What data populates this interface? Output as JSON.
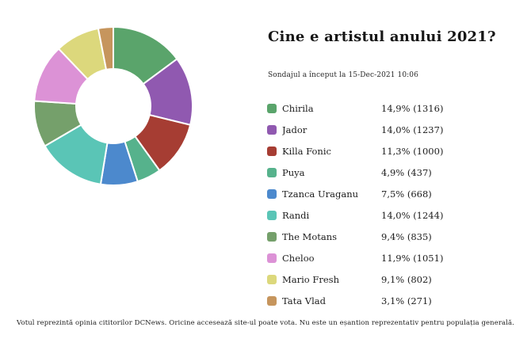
{
  "header": {
    "title": "Cine e artistul anului 2021?",
    "subtitle": "Sondajul a început la 15-Dec-2021 10:06"
  },
  "footer": {
    "disclaimer": "Votul reprezintă opinia cititorilor DCNews. Oricine accesează site-ul poate vota. Nu este un eșantion reprezentativ pentru populația generală."
  },
  "chart_data": {
    "type": "pie",
    "variant": "donut",
    "title": "Cine e artistul anului 2021?",
    "legend_position": "right",
    "start_angle_deg": -90,
    "direction": "clockwise",
    "inner_radius_ratio": 0.47,
    "categories": [
      "Chirila",
      "Jador",
      "Killa Fonic",
      "Puya",
      "Tzanca Uraganu",
      "Randi",
      "The Motans",
      "Cheloo",
      "Mario Fresh",
      "Tata Vlad"
    ],
    "values_percent": [
      14.9,
      14.0,
      11.3,
      4.9,
      7.5,
      14.0,
      9.4,
      11.9,
      9.1,
      3.1
    ],
    "votes": [
      1316,
      1237,
      1000,
      437,
      668,
      1244,
      835,
      1051,
      802,
      271
    ],
    "labels": [
      "14,9% (1316)",
      "14,0% (1237)",
      "11,3% (1000)",
      "4,9% (437)",
      "7,5% (668)",
      "14,0% (1244)",
      "9,4% (835)",
      "11,9% (1051)",
      "9,1% (802)",
      "3,1% (271)"
    ],
    "colors": [
      "#5aa46b",
      "#9059b0",
      "#a63d33",
      "#56b28c",
      "#4c89cd",
      "#5ac5b6",
      "#75a06b",
      "#dc92d6",
      "#dcd87c",
      "#c6955d"
    ],
    "slice_separator_color": "#ffffff"
  }
}
